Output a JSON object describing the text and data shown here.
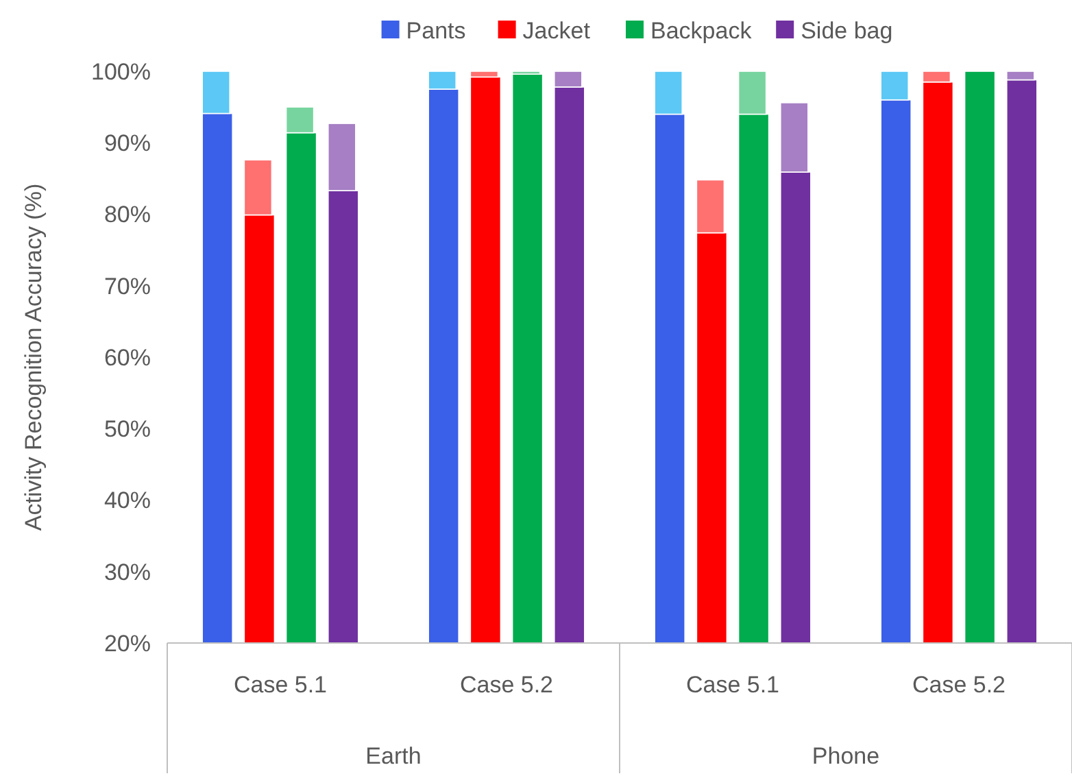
{
  "chart_data": {
    "type": "bar",
    "ylabel": "Activity Recognition Accuracy (%)",
    "categories": [
      "Case 5.1",
      "Case 5.2",
      "Case 5.1",
      "Case 5.2"
    ],
    "annotations": [
      "Earth",
      "Phone"
    ],
    "series": [
      {
        "name": "Pants",
        "color": "#3a5fe8",
        "values": [
          94.1,
          97.5,
          94.0,
          96.0
        ]
      },
      {
        "color": "#5bc8f5",
        "base": [
          94.1,
          97.5,
          94.0,
          96.0
        ],
        "values": [
          5.9,
          2.5,
          6.0,
          4.0
        ]
      },
      {
        "name": "Jacket",
        "color": "#ff0000",
        "values": [
          79.9,
          99.2,
          77.4,
          98.5
        ]
      },
      {
        "color": "#ff7070",
        "base": [
          79.9,
          99.2,
          77.4,
          98.5
        ],
        "values": [
          7.7,
          0.8,
          7.4,
          1.5
        ]
      },
      {
        "name": "Backpack",
        "color": "#00ac4e",
        "values": [
          91.4,
          99.6,
          94.0,
          100
        ]
      },
      {
        "color": "#77d49e",
        "base": [
          91.4,
          99.6,
          94.0,
          null
        ],
        "values": [
          3.6,
          0.4,
          6.0,
          null
        ]
      },
      {
        "name": "Side bag",
        "color": "#7030a0",
        "values": [
          83.3,
          97.8,
          85.9,
          98.8
        ]
      },
      {
        "color": "#a67fc4",
        "base": [
          83.3,
          97.8,
          85.9,
          98.8
        ],
        "values": [
          9.4,
          2.2,
          9.7,
          1.2
        ]
      }
    ],
    "ylim": [
      20,
      100
    ],
    "yticks": [
      {
        "value": 20,
        "label": "20%"
      },
      {
        "value": 30,
        "label": "30%"
      },
      {
        "value": 40,
        "label": "40%"
      },
      {
        "value": 50,
        "label": "50%"
      },
      {
        "value": 60,
        "label": "60%"
      },
      {
        "value": 70,
        "label": "70%"
      },
      {
        "value": 80,
        "label": "80%"
      },
      {
        "value": 90,
        "label": "90%"
      },
      {
        "value": 100,
        "label": "100%"
      }
    ],
    "legend": "top",
    "grid": false
  }
}
